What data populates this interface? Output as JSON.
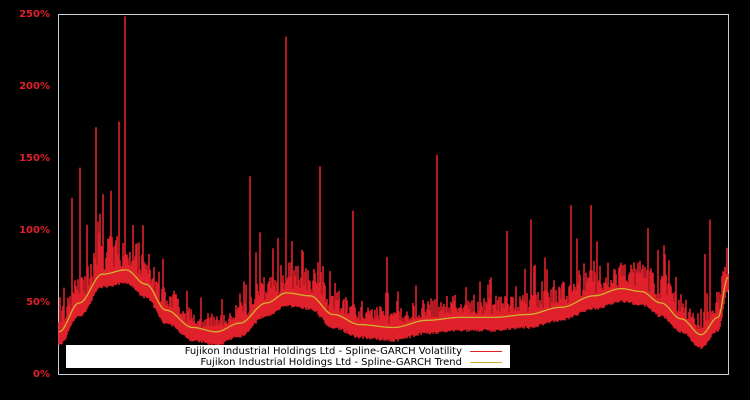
{
  "chart_data": {
    "type": "line",
    "title": "",
    "xlabel": "",
    "ylabel": "",
    "ylim": [
      0,
      250
    ],
    "y_tick_labels": [
      "0%",
      "50%",
      "100%",
      "150%",
      "200%",
      "250%"
    ],
    "y_ticks": [
      0,
      50,
      100,
      150,
      200,
      250
    ],
    "grid": false,
    "legend_position": "lower left (inside plot)",
    "background": "#000000",
    "x_normalized": [
      0.0,
      0.03,
      0.065,
      0.1,
      0.13,
      0.16,
      0.2,
      0.235,
      0.27,
      0.31,
      0.34,
      0.375,
      0.41,
      0.45,
      0.5,
      0.55,
      0.6,
      0.65,
      0.7,
      0.75,
      0.8,
      0.84,
      0.87,
      0.9,
      0.93,
      0.96,
      0.985,
      1.0
    ],
    "series": [
      {
        "name": "Fujikon Industrial Holdings Ltd - Spline-GARCH Volatility",
        "color": "#e0202a",
        "description": "Noisy daily volatility hugging the trend from slightly below, with frequent spikes",
        "baseline_offset_below_trend": -6,
        "spikes": [
          {
            "x": 0.02,
            "value": 123
          },
          {
            "x": 0.032,
            "value": 144
          },
          {
            "x": 0.055,
            "value": 172
          },
          {
            "x": 0.062,
            "value": 112
          },
          {
            "x": 0.078,
            "value": 128
          },
          {
            "x": 0.09,
            "value": 176
          },
          {
            "x": 0.098,
            "value": 249
          },
          {
            "x": 0.12,
            "value": 92
          },
          {
            "x": 0.285,
            "value": 138
          },
          {
            "x": 0.3,
            "value": 99
          },
          {
            "x": 0.34,
            "value": 235
          },
          {
            "x": 0.39,
            "value": 145
          },
          {
            "x": 0.44,
            "value": 114
          },
          {
            "x": 0.49,
            "value": 82
          },
          {
            "x": 0.565,
            "value": 153
          },
          {
            "x": 0.67,
            "value": 100
          },
          {
            "x": 0.705,
            "value": 108
          },
          {
            "x": 0.765,
            "value": 118
          },
          {
            "x": 0.795,
            "value": 118
          },
          {
            "x": 0.88,
            "value": 102
          },
          {
            "x": 0.965,
            "value": 84
          },
          {
            "x": 0.973,
            "value": 108
          }
        ]
      },
      {
        "name": "Fujikon Industrial Holdings Ltd - Spline-GARCH Trend",
        "color": "#d4b030",
        "values": [
          30,
          50,
          70,
          73,
          63,
          45,
          33,
          30,
          36,
          50,
          57,
          55,
          42,
          35,
          33,
          38,
          40,
          40,
          42,
          47,
          55,
          60,
          58,
          50,
          39,
          28,
          40,
          68
        ]
      }
    ]
  },
  "legend": {
    "items": [
      {
        "label": "Fujikon Industrial Holdings Ltd - Spline-GARCH Volatility",
        "color": "#e0202a"
      },
      {
        "label": "Fujikon Industrial Holdings Ltd - Spline-GARCH Trend",
        "color": "#d4b030"
      }
    ]
  }
}
